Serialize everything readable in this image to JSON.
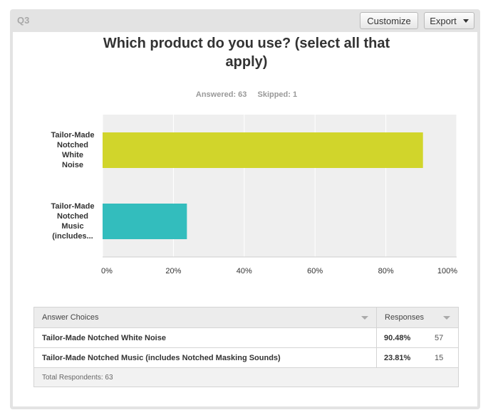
{
  "question_label": "Q3",
  "toolbar": {
    "customize_label": "Customize",
    "export_label": "Export"
  },
  "title": "Which product do you use? (select all that apply)",
  "answered": "Answered: 63",
  "skipped": "Skipped: 1",
  "colors": {
    "series": [
      "#d1d52b",
      "#33bdbd"
    ]
  },
  "chart_data": {
    "type": "bar",
    "orientation": "horizontal",
    "categories": [
      "Tailor-Made Notched White Noise",
      "Tailor-Made Notched Music (includes..."
    ],
    "category_lines": [
      [
        "Tailor-Made",
        "Notched",
        "White",
        "Noise"
      ],
      [
        "Tailor-Made",
        "Notched",
        "Music",
        "(includes..."
      ]
    ],
    "values": [
      90.48,
      23.81
    ],
    "xlim": [
      0,
      100
    ],
    "xticks": [
      "0%",
      "20%",
      "40%",
      "60%",
      "80%",
      "100%"
    ],
    "grid": true
  },
  "table": {
    "headers": {
      "answer": "Answer Choices",
      "responses": "Responses"
    },
    "rows": [
      {
        "answer": "Tailor-Made Notched White Noise",
        "percent": "90.48%",
        "count": "57"
      },
      {
        "answer": "Tailor-Made Notched Music (includes Notched Masking Sounds)",
        "percent": "23.81%",
        "count": "15"
      }
    ],
    "total": "Total Respondents: 63"
  }
}
